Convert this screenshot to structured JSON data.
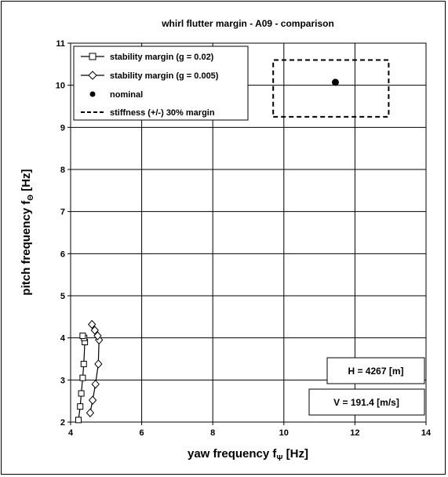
{
  "chart_data": {
    "type": "line",
    "title": "whirl flutter margin - A09 - comparison",
    "xlabel": "yaw frequency",
    "xlabel_symbol": "f",
    "xlabel_subscript": "Ψ",
    "xlabel_unit": "[Hz]",
    "ylabel": "pitch frequency",
    "ylabel_symbol": "f",
    "ylabel_subscript": "Θ",
    "ylabel_unit": "[Hz]",
    "xlim": [
      4,
      14
    ],
    "ylim": [
      2,
      11
    ],
    "xticks": [
      4,
      6,
      8,
      10,
      12,
      14
    ],
    "yticks": [
      2,
      3,
      4,
      5,
      6,
      7,
      8,
      9,
      10,
      11
    ],
    "grid": true,
    "legend_position": "top-left",
    "series": [
      {
        "name": "stability margin (g = 0.02)",
        "marker": "square",
        "line": "solid",
        "x": [
          4.22,
          4.27,
          4.3,
          4.34,
          4.37,
          4.4,
          4.38,
          4.34
        ],
        "y": [
          2.05,
          2.37,
          2.68,
          3.05,
          3.38,
          3.9,
          4.0,
          4.05
        ]
      },
      {
        "name": "stability margin (g = 0.005)",
        "marker": "diamond",
        "line": "solid",
        "x": [
          4.55,
          4.62,
          4.7,
          4.78,
          4.8,
          4.76,
          4.68,
          4.6
        ],
        "y": [
          2.22,
          2.52,
          2.9,
          3.38,
          3.95,
          4.05,
          4.18,
          4.32
        ]
      },
      {
        "name": "nominal",
        "marker": "circle",
        "line": "none",
        "x": [
          11.45
        ],
        "y": [
          10.07
        ]
      },
      {
        "name": "stiffness (+/-) 30% margin",
        "marker": "none",
        "line": "dashed",
        "x": [
          9.7,
          12.95,
          12.95,
          9.7,
          9.7
        ],
        "y": [
          9.25,
          9.25,
          10.6,
          10.6,
          9.25
        ]
      }
    ],
    "annotations": [
      "H = 4267 [m]",
      "V = 191.4 [m/s]"
    ]
  }
}
